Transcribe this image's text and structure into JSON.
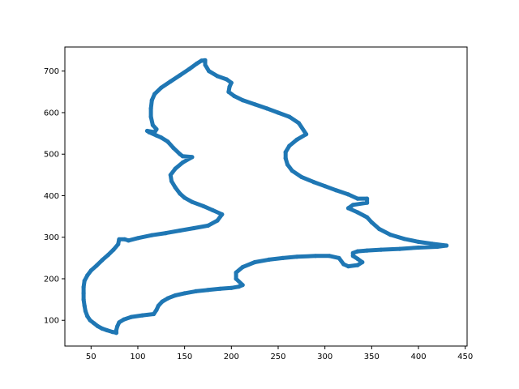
{
  "chart_data": {
    "type": "scatter",
    "title": "",
    "xlabel": "",
    "ylabel": "",
    "xlim": [
      22,
      452
    ],
    "ylim": [
      38,
      758
    ],
    "xticks": [
      50,
      100,
      150,
      200,
      250,
      300,
      350,
      400,
      450
    ],
    "yticks": [
      100,
      200,
      300,
      400,
      500,
      600,
      700
    ],
    "grid": false,
    "legend": "none",
    "series": [
      {
        "color": "#1f77b4",
        "marker": "dot",
        "points": [
          [
            77,
            70
          ],
          [
            73,
            72
          ],
          [
            67,
            76
          ],
          [
            62,
            80
          ],
          [
            57,
            86
          ],
          [
            53,
            93
          ],
          [
            49,
            100
          ],
          [
            46,
            110
          ],
          [
            44,
            122
          ],
          [
            43,
            135
          ],
          [
            42,
            150
          ],
          [
            42,
            165
          ],
          [
            42,
            180
          ],
          [
            43,
            195
          ],
          [
            46,
            208
          ],
          [
            50,
            220
          ],
          [
            56,
            232
          ],
          [
            62,
            245
          ],
          [
            68,
            257
          ],
          [
            74,
            270
          ],
          [
            79,
            283
          ],
          [
            80,
            295
          ],
          [
            86,
            295
          ],
          [
            90,
            292
          ],
          [
            100,
            298
          ],
          [
            115,
            305
          ],
          [
            130,
            310
          ],
          [
            145,
            316
          ],
          [
            160,
            322
          ],
          [
            175,
            328
          ],
          [
            185,
            340
          ],
          [
            190,
            355
          ],
          [
            180,
            365
          ],
          [
            170,
            375
          ],
          [
            158,
            385
          ],
          [
            150,
            395
          ],
          [
            145,
            405
          ],
          [
            140,
            420
          ],
          [
            136,
            435
          ],
          [
            135,
            450
          ],
          [
            140,
            465
          ],
          [
            148,
            480
          ],
          [
            158,
            493
          ],
          [
            148,
            495
          ],
          [
            145,
            500
          ],
          [
            138,
            515
          ],
          [
            132,
            530
          ],
          [
            125,
            540
          ],
          [
            120,
            545
          ],
          [
            112,
            553
          ],
          [
            110,
            556
          ],
          [
            118,
            553
          ],
          [
            120,
            560
          ],
          [
            116,
            570
          ],
          [
            114,
            590
          ],
          [
            114,
            610
          ],
          [
            115,
            630
          ],
          [
            118,
            645
          ],
          [
            125,
            660
          ],
          [
            135,
            675
          ],
          [
            145,
            690
          ],
          [
            155,
            705
          ],
          [
            163,
            718
          ],
          [
            168,
            725
          ],
          [
            172,
            726
          ],
          [
            172,
            715
          ],
          [
            176,
            700
          ],
          [
            185,
            688
          ],
          [
            195,
            680
          ],
          [
            200,
            672
          ],
          [
            198,
            662
          ],
          [
            197,
            650
          ],
          [
            203,
            640
          ],
          [
            212,
            630
          ],
          [
            225,
            620
          ],
          [
            238,
            610
          ],
          [
            250,
            600
          ],
          [
            262,
            590
          ],
          [
            272,
            575
          ],
          [
            280,
            548
          ],
          [
            270,
            535
          ],
          [
            262,
            520
          ],
          [
            258,
            505
          ],
          [
            258,
            490
          ],
          [
            260,
            475
          ],
          [
            265,
            460
          ],
          [
            275,
            445
          ],
          [
            288,
            433
          ],
          [
            300,
            423
          ],
          [
            312,
            413
          ],
          [
            325,
            403
          ],
          [
            335,
            393
          ],
          [
            345,
            393
          ],
          [
            345,
            383
          ],
          [
            330,
            378
          ],
          [
            325,
            370
          ],
          [
            335,
            360
          ],
          [
            345,
            348
          ],
          [
            350,
            336
          ],
          [
            358,
            320
          ],
          [
            370,
            306
          ],
          [
            385,
            296
          ],
          [
            400,
            289
          ],
          [
            415,
            284
          ],
          [
            430,
            280
          ],
          [
            420,
            277
          ],
          [
            400,
            275
          ],
          [
            380,
            272
          ],
          [
            360,
            270
          ],
          [
            345,
            268
          ],
          [
            335,
            266
          ],
          [
            330,
            262
          ],
          [
            330,
            255
          ],
          [
            335,
            248
          ],
          [
            340,
            240
          ],
          [
            335,
            233
          ],
          [
            325,
            230
          ],
          [
            320,
            235
          ],
          [
            315,
            250
          ],
          [
            305,
            255
          ],
          [
            290,
            255
          ],
          [
            270,
            253
          ],
          [
            255,
            250
          ],
          [
            240,
            246
          ],
          [
            225,
            240
          ],
          [
            212,
            228
          ],
          [
            205,
            215
          ],
          [
            205,
            200
          ],
          [
            212,
            185
          ],
          [
            208,
            181
          ],
          [
            200,
            178
          ],
          [
            188,
            176
          ],
          [
            175,
            173
          ],
          [
            162,
            170
          ],
          [
            150,
            165
          ],
          [
            140,
            160
          ],
          [
            132,
            153
          ],
          [
            126,
            145
          ],
          [
            122,
            135
          ],
          [
            120,
            125
          ],
          [
            117,
            115
          ],
          [
            105,
            112
          ],
          [
            93,
            108
          ],
          [
            85,
            102
          ],
          [
            80,
            95
          ],
          [
            78,
            85
          ],
          [
            77,
            76
          ],
          [
            77,
            70
          ]
        ]
      }
    ]
  }
}
